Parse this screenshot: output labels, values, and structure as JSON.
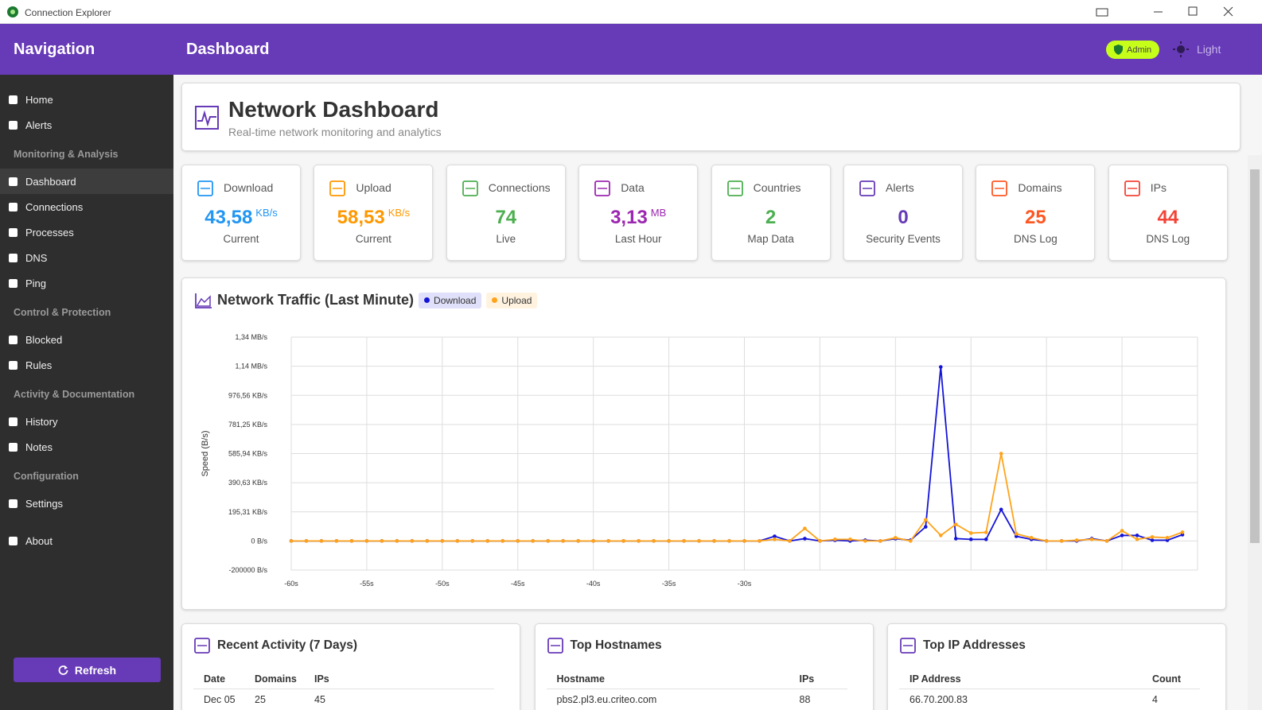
{
  "window": {
    "title": "Connection Explorer"
  },
  "sidebar": {
    "title": "Navigation",
    "groups": [
      {
        "heading": null,
        "items": [
          "Home",
          "Alerts"
        ]
      },
      {
        "heading": "Monitoring & Analysis",
        "items": [
          "Dashboard",
          "Connections",
          "Processes",
          "DNS",
          "Ping"
        ]
      },
      {
        "heading": "Control & Protection",
        "items": [
          "Blocked",
          "Rules"
        ]
      },
      {
        "heading": "Activity & Documentation",
        "items": [
          "History",
          "Notes"
        ]
      },
      {
        "heading": "Configuration",
        "items": [
          "Settings"
        ]
      },
      {
        "heading": null,
        "items": [
          "About"
        ]
      }
    ],
    "refresh": "Refresh"
  },
  "header": {
    "title": "Dashboard",
    "role": "Admin",
    "theme": "Light"
  },
  "intro": {
    "title": "Network Dashboard",
    "subtitle": "Real-time network monitoring and analytics"
  },
  "stats": [
    {
      "label": "Download",
      "value": "43,58",
      "unit": "KB/s",
      "sub": "Current",
      "color": "#2196f3"
    },
    {
      "label": "Upload",
      "value": "58,53",
      "unit": "KB/s",
      "sub": "Current",
      "color": "#ff9800"
    },
    {
      "label": "Connections",
      "value": "74",
      "sub": "Live",
      "color": "#4caf50"
    },
    {
      "label": "Data",
      "value": "3,13",
      "unit": "MB",
      "sub": "Last Hour",
      "color": "#9c27b0"
    },
    {
      "label": "Countries",
      "value": "2",
      "sub": "Map Data",
      "color": "#4caf50"
    },
    {
      "label": "Alerts",
      "value": "0",
      "sub": "Security Events",
      "color": "#673ab7"
    },
    {
      "label": "Domains",
      "value": "25",
      "sub": "DNS Log",
      "color": "#ff5722"
    },
    {
      "label": "IPs",
      "value": "44",
      "sub": "DNS Log",
      "color": "#f44336"
    }
  ],
  "chart_data": {
    "type": "line",
    "title": "Network Traffic (Last Minute)",
    "y_label": "Speed (B/s)",
    "x": [
      -60,
      -59,
      -58,
      -57,
      -56,
      -55,
      -54,
      -53,
      -52,
      -51,
      -50,
      -49,
      -48,
      -47,
      -46,
      -45,
      -44,
      -43,
      -42,
      -41,
      -40,
      -39,
      -38,
      -37,
      -36,
      -35,
      -34,
      -33,
      -32,
      -31,
      -30,
      -29,
      -28,
      -27,
      -26,
      -25,
      -24,
      -23,
      -22,
      -21,
      -20,
      -19,
      -18,
      -17,
      -16,
      -15,
      -14,
      -13,
      -12,
      -11,
      -10,
      -9,
      -8,
      -7,
      -6,
      -5,
      -4,
      -3,
      -2,
      -1
    ],
    "series": [
      {
        "name": "Download",
        "color": "#1414d8",
        "values": [
          0,
          0,
          0,
          0,
          0,
          0,
          0,
          0,
          0,
          0,
          0,
          0,
          0,
          0,
          0,
          0,
          0,
          0,
          0,
          0,
          0,
          0,
          0,
          0,
          0,
          0,
          0,
          0,
          0,
          0,
          0,
          0,
          32000,
          0,
          16000,
          0,
          5000,
          0,
          5000,
          0,
          16000,
          5000,
          97000,
          1195000,
          16000,
          11000,
          11000,
          216000,
          32000,
          11000,
          0,
          0,
          0,
          16000,
          0,
          38000,
          38000,
          5000,
          5000,
          43000
        ]
      },
      {
        "name": "Upload",
        "color": "#ffa31a",
        "values": [
          0,
          0,
          0,
          0,
          0,
          0,
          0,
          0,
          0,
          0,
          0,
          0,
          0,
          0,
          0,
          0,
          0,
          0,
          0,
          0,
          0,
          0,
          0,
          0,
          0,
          0,
          0,
          0,
          0,
          0,
          0,
          0,
          11000,
          0,
          86000,
          0,
          11000,
          11000,
          0,
          0,
          22000,
          0,
          146000,
          38000,
          114000,
          54000,
          59000,
          600000,
          49000,
          22000,
          0,
          0,
          5000,
          11000,
          0,
          70000,
          11000,
          27000,
          22000,
          60000
        ]
      }
    ],
    "xlim": [
      -60,
      0
    ],
    "xticks": [
      {
        "value": -60,
        "label": "-60s"
      },
      {
        "value": -55,
        "label": "-55s"
      },
      {
        "value": -50,
        "label": "-50s"
      },
      {
        "value": -45,
        "label": "-45s"
      },
      {
        "value": -40,
        "label": "-40s"
      },
      {
        "value": -35,
        "label": "-35s"
      },
      {
        "value": -30,
        "label": "-30s"
      },
      {
        "value": -25,
        "label": null
      },
      {
        "value": -20,
        "label": null
      },
      {
        "value": -15,
        "label": null
      },
      {
        "value": -10,
        "label": null
      },
      {
        "value": -5,
        "label": null
      },
      {
        "value": 0,
        "label": null
      }
    ],
    "ylim": [
      -200000,
      1400000
    ],
    "yticks": [
      {
        "value": -200000,
        "label": "-200000 B/s"
      },
      {
        "value": 0,
        "label": "0 B/s"
      },
      {
        "value": 200000,
        "label": "195,31 KB/s"
      },
      {
        "value": 400000,
        "label": "390,63 KB/s"
      },
      {
        "value": 600000,
        "label": "585,94 KB/s"
      },
      {
        "value": 800000,
        "label": "781,25 KB/s"
      },
      {
        "value": 1000000,
        "label": "976,56 KB/s"
      },
      {
        "value": 1200000,
        "label": "1,14 MB/s"
      },
      {
        "value": 1400000,
        "label": "1,34 MB/s"
      }
    ],
    "grid": true
  },
  "tables": [
    {
      "title": "Recent Activity (7 Days)",
      "columns": [
        "Date",
        "Domains",
        "IPs"
      ],
      "rows": [
        [
          "Dec 05",
          "25",
          "45"
        ]
      ]
    },
    {
      "title": "Top Hostnames",
      "columns": [
        "Hostname",
        "IPs"
      ],
      "rows": [
        [
          "pbs2.pl3.eu.criteo.com",
          "88"
        ]
      ]
    },
    {
      "title": "Top IP Addresses",
      "columns": [
        "IP Address",
        "Count"
      ],
      "rows": [
        [
          "66.70.200.83",
          "4"
        ]
      ]
    }
  ]
}
